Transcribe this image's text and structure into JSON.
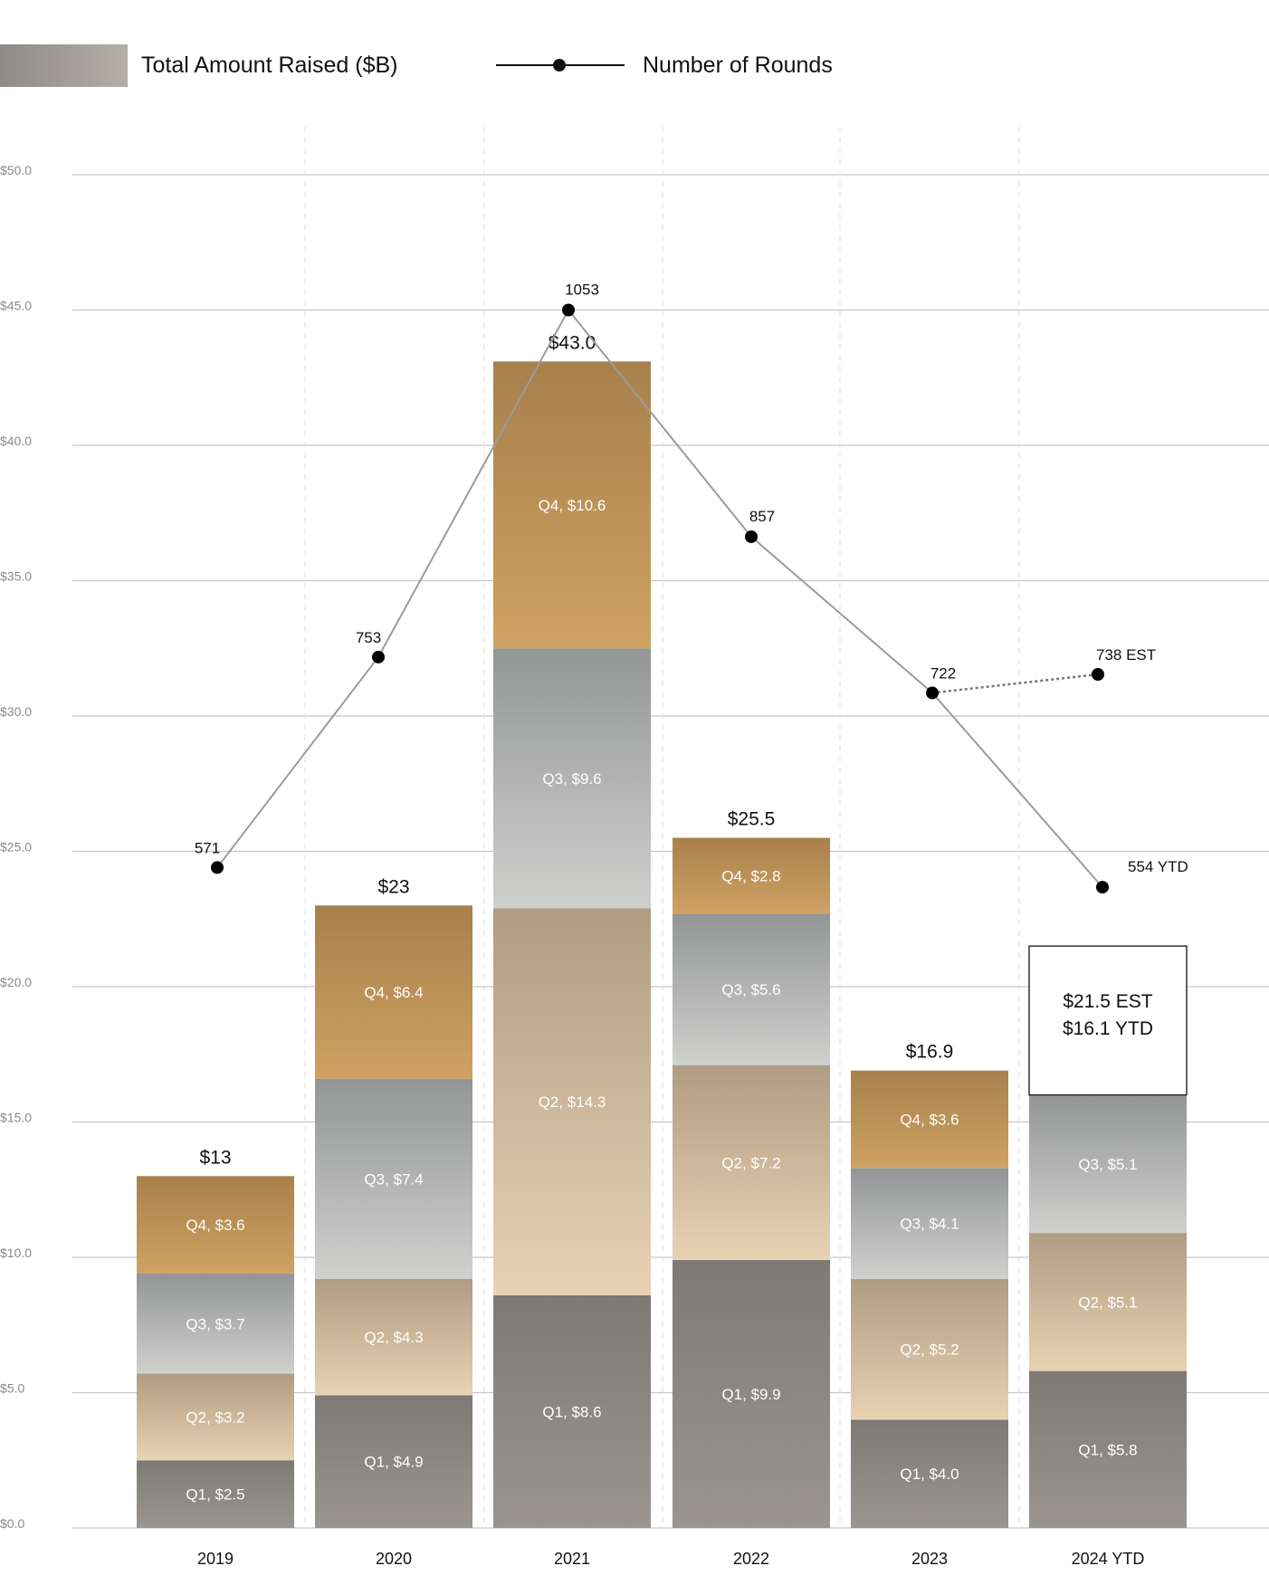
{
  "legend": {
    "bar_label": "Total Amount Raised ($B)",
    "line_label": "Number of Rounds"
  },
  "chart_data": {
    "type": "bar",
    "stacked": true,
    "title": "",
    "xlabel": "",
    "ylabel": "",
    "ylim": [
      0,
      50
    ],
    "y_ticks": [
      0,
      5,
      10,
      15,
      20,
      25,
      30,
      35,
      40,
      45,
      50
    ],
    "y_tick_labels": [
      "$0.0",
      "$5.0",
      "$10.0",
      "$15.0",
      "$20.0",
      "$25.0",
      "$30.0",
      "$35.0",
      "$40.0",
      "$45.0",
      "$50.0"
    ],
    "categories": [
      "2019",
      "2020",
      "2021",
      "2022",
      "2023",
      "2024 YTD"
    ],
    "series": [
      {
        "name": "Q1",
        "values": [
          2.5,
          4.9,
          8.6,
          9.9,
          4.0,
          5.8
        ],
        "labels": [
          "Q1, $2.5",
          "Q1, $4.9",
          "Q1, $8.6",
          "Q1, $9.9",
          "Q1, $4.0",
          "Q1, $5.8"
        ],
        "color_top": "#7d7a75",
        "color_bottom": "#9a968f"
      },
      {
        "name": "Q2",
        "values": [
          3.2,
          4.3,
          14.3,
          7.2,
          5.2,
          5.1
        ],
        "labels": [
          "Q2, $3.2",
          "Q2, $4.3",
          "Q2, $14.3",
          "Q2, $7.2",
          "Q2, $5.2",
          "Q2, $5.1"
        ],
        "color_top": "#b09c83",
        "color_bottom": "#e8d2b2"
      },
      {
        "name": "Q3",
        "values": [
          3.7,
          7.4,
          9.6,
          5.6,
          4.1,
          5.1
        ],
        "labels": [
          "Q3, $3.7",
          "Q3, $7.4",
          "Q3, $9.6",
          "Q3, $5.6",
          "Q3, $4.1",
          "Q3,  $5.1"
        ],
        "color_top": "#939596",
        "color_bottom": "#d0d0ce"
      },
      {
        "name": "Q4",
        "values": [
          3.6,
          6.4,
          10.6,
          2.8,
          3.6,
          0
        ],
        "labels": [
          "Q4, $3.6",
          "Q4, $6.4",
          "Q4, $10.6",
          "Q4, $2.8",
          "Q4, $3.6",
          ""
        ],
        "color_top": "#a8804b",
        "color_bottom": "#cfa263"
      }
    ],
    "totals": [
      "$13",
      "$23",
      "$43.0",
      "$25.5",
      "$16.9",
      ""
    ],
    "estimate_box": {
      "category": "2024 YTD",
      "value": 21.5,
      "lines": [
        "$21.5 EST",
        "$16.1 YTD"
      ]
    },
    "line_series": {
      "name": "Number of Rounds",
      "values": [
        571,
        753,
        1053,
        857,
        722,
        554
      ],
      "labels": [
        "571",
        "753",
        "1053",
        "857",
        "722",
        "554 YTD"
      ],
      "estimate": {
        "value": 738,
        "label": "738 EST"
      },
      "ylim": [
        0,
        1170
      ]
    }
  }
}
